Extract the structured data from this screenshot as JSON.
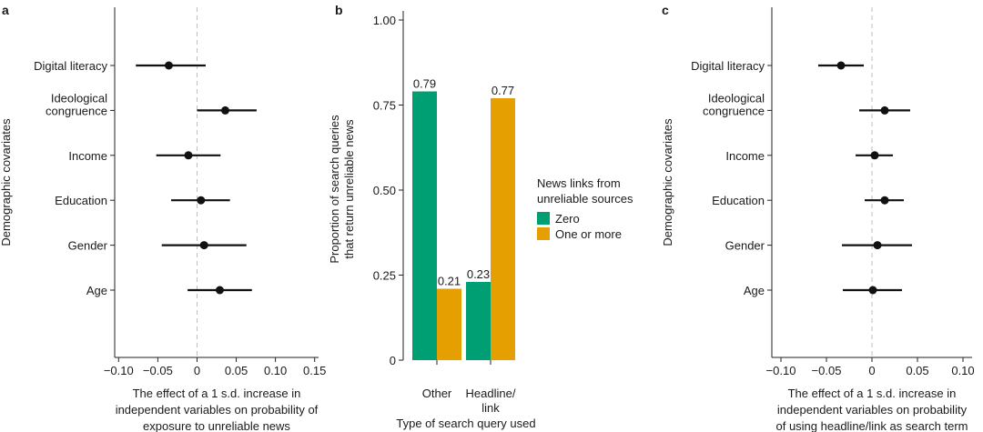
{
  "chart_data": [
    {
      "panel": "a",
      "type": "scatter",
      "subtype": "coefficient-plot",
      "ylabel": "Demographic covariates",
      "xlabel": [
        "The effect of a 1 s.d. increase in",
        "independent variables on probability of",
        "exposure to unreliable news"
      ],
      "xlim": [
        -0.105,
        0.155
      ],
      "xticks": [
        -0.1,
        -0.05,
        0,
        0.05,
        0.1,
        0.15
      ],
      "xtick_labels": [
        "−0.10",
        "−0.05",
        "0",
        "0.05",
        "0.10",
        "0.15"
      ],
      "points": [
        {
          "label": [
            "Digital literacy"
          ],
          "estimate": -0.036,
          "ci": [
            -0.078,
            0.011
          ]
        },
        {
          "label": [
            "Ideological",
            "congruence"
          ],
          "estimate": 0.036,
          "ci": [
            0.0,
            0.076
          ]
        },
        {
          "label": [
            "Income"
          ],
          "estimate": -0.011,
          "ci": [
            -0.052,
            0.03
          ]
        },
        {
          "label": [
            "Education"
          ],
          "estimate": 0.005,
          "ci": [
            -0.033,
            0.042
          ]
        },
        {
          "label": [
            "Gender"
          ],
          "estimate": 0.009,
          "ci": [
            -0.045,
            0.063
          ]
        },
        {
          "label": [
            "Age"
          ],
          "estimate": 0.029,
          "ci": [
            -0.012,
            0.07
          ]
        }
      ]
    },
    {
      "panel": "b",
      "type": "bar",
      "ylabel": [
        "Proportion of search queries",
        "that return unreliable news"
      ],
      "xlabel": "Type of search query used",
      "ylim": [
        0,
        1.0
      ],
      "yticks": [
        0,
        0.25,
        0.5,
        0.75,
        1.0
      ],
      "ytick_labels": [
        "0",
        "0.25",
        "0.50",
        "0.75",
        "1.00"
      ],
      "categories": [
        [
          "Other"
        ],
        [
          "Headline/",
          "link"
        ]
      ],
      "series": [
        {
          "name": "Zero",
          "color": "#009e73",
          "values": [
            0.79,
            0.23
          ],
          "labels": [
            "0.79",
            "0.23"
          ]
        },
        {
          "name": "One or more",
          "color": "#e69f00",
          "values": [
            0.21,
            0.77
          ],
          "labels": [
            "0.21",
            "0.77"
          ]
        }
      ],
      "legend_title": [
        "News links from",
        "unreliable sources"
      ]
    },
    {
      "panel": "c",
      "type": "scatter",
      "subtype": "coefficient-plot",
      "ylabel": "Demographic covariates",
      "xlabel": [
        "The effect of a 1 s.d. increase in",
        "independent variables on probability",
        "of using headline/link as search term"
      ],
      "xlim": [
        -0.11,
        0.11
      ],
      "xticks": [
        -0.1,
        -0.05,
        0,
        0.05,
        0.1
      ],
      "xtick_labels": [
        "−0.10",
        "−0.05",
        "0",
        "0.05",
        "0.10"
      ],
      "points": [
        {
          "label": [
            "Digital literacy"
          ],
          "estimate": -0.034,
          "ci": [
            -0.059,
            -0.009
          ]
        },
        {
          "label": [
            "Ideological",
            "congruence"
          ],
          "estimate": 0.014,
          "ci": [
            -0.014,
            0.042
          ]
        },
        {
          "label": [
            "Income"
          ],
          "estimate": 0.003,
          "ci": [
            -0.018,
            0.023
          ]
        },
        {
          "label": [
            "Education"
          ],
          "estimate": 0.014,
          "ci": [
            -0.008,
            0.035
          ]
        },
        {
          "label": [
            "Gender"
          ],
          "estimate": 0.006,
          "ci": [
            -0.033,
            0.044
          ]
        },
        {
          "label": [
            "Age"
          ],
          "estimate": 0.001,
          "ci": [
            -0.032,
            0.033
          ]
        }
      ]
    }
  ]
}
